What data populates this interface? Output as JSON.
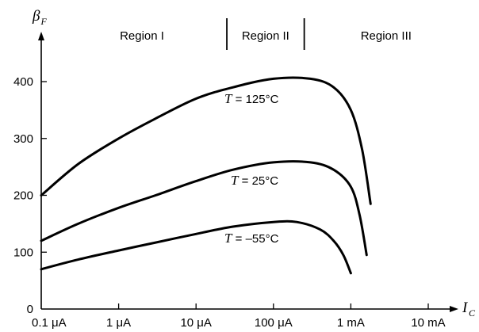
{
  "chart_data": {
    "type": "line",
    "title": "",
    "xlabel": "I",
    "xlabel_sub": "C",
    "ylabel": "β",
    "ylabel_sub": "F",
    "x_scale": "log",
    "x_ticks": [
      0.1,
      1,
      10,
      100,
      1000,
      10000
    ],
    "x_tick_labels": [
      "0.1 μA",
      "1 μA",
      "10 μA",
      "100 μA",
      "1 mA",
      "10 mA"
    ],
    "x_unit": "μA",
    "y_ticks": [
      0,
      100,
      200,
      300,
      400
    ],
    "y_tick_labels": [
      "0",
      "100",
      "200",
      "300",
      "400"
    ],
    "ylim": [
      0,
      450
    ],
    "grid": false,
    "regions": [
      {
        "label": "Region I"
      },
      {
        "label": "Region II",
        "x_start": 25
      },
      {
        "label": "Region III",
        "x_start": 250
      }
    ],
    "series": [
      {
        "name": "T = 125°C",
        "label_prefix": "T",
        "label_value": " = 125°C",
        "x": [
          0.1,
          0.3,
          1,
          3,
          10,
          30,
          100,
          300,
          600,
          1000,
          1400,
          1800
        ],
        "y": [
          200,
          255,
          300,
          335,
          370,
          390,
          405,
          405,
          390,
          350,
          280,
          185
        ]
      },
      {
        "name": "T = 25°C",
        "label_prefix": "T",
        "label_value": " = 25°C",
        "x": [
          0.1,
          0.3,
          1,
          3,
          10,
          30,
          100,
          300,
          600,
          1000,
          1300,
          1600
        ],
        "y": [
          120,
          150,
          178,
          200,
          225,
          245,
          258,
          258,
          245,
          215,
          165,
          95
        ]
      },
      {
        "name": "T = –55°C",
        "label_prefix": "T",
        "label_value": " = –55°C",
        "x": [
          0.1,
          0.3,
          1,
          3,
          10,
          30,
          100,
          200,
          400,
          600,
          800,
          1000
        ],
        "y": [
          70,
          87,
          103,
          117,
          132,
          145,
          153,
          153,
          140,
          120,
          95,
          63
        ]
      }
    ]
  }
}
